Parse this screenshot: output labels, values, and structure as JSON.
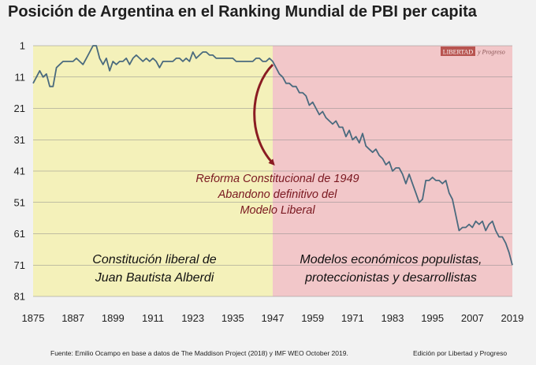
{
  "title": "Posición de Argentina en el Ranking Mundial de PBI per capita",
  "logo": {
    "text": "LIBERTAD",
    "suffix": "y Progreso"
  },
  "footer": {
    "source": "Fuente: Emilio Ocampo en base a datos de The Maddison Project (2018) y IMF WEO October 2019.",
    "edition": "Edición por Libertad y Progreso"
  },
  "colors": {
    "left_region": "#f4f1ba",
    "right_region": "#f2c7c9",
    "line": "#4a6a7e",
    "arrow": "#8a1c22",
    "annotation": "#7a1820"
  },
  "chart_data": {
    "type": "line",
    "title": "Posición de Argentina en el Ranking Mundial de PBI per capita",
    "xlabel": "",
    "ylabel": "",
    "xlim": [
      1875,
      2019
    ],
    "ylim": [
      1,
      81
    ],
    "y_inverted": true,
    "x_ticks": [
      1875,
      1887,
      1899,
      1911,
      1923,
      1935,
      1947,
      1959,
      1971,
      1983,
      1995,
      2007,
      2019
    ],
    "y_ticks": [
      1,
      11,
      21,
      31,
      41,
      51,
      61,
      71,
      81
    ],
    "regions": [
      {
        "from": 1875,
        "to": 1947,
        "label_lines": [
          "Constitución liberal de",
          "Juan Bautista Alberdi"
        ]
      },
      {
        "from": 1947,
        "to": 2019,
        "label_lines": [
          "Modelos económicos populistas,",
          "proteccionistas y desarrollistas"
        ]
      }
    ],
    "annotation": {
      "lines": [
        "Reforma Constitucional de 1949",
        "Abandono definitivo del",
        "Modelo Liberal"
      ],
      "arrow_from_year": 1947
    },
    "series": [
      {
        "name": "Posición de Argentina",
        "x": [
          1875,
          1876,
          1877,
          1878,
          1879,
          1880,
          1881,
          1882,
          1883,
          1884,
          1885,
          1886,
          1887,
          1888,
          1889,
          1890,
          1891,
          1892,
          1893,
          1894,
          1895,
          1896,
          1897,
          1898,
          1899,
          1900,
          1901,
          1902,
          1903,
          1904,
          1905,
          1906,
          1907,
          1908,
          1909,
          1910,
          1911,
          1912,
          1913,
          1914,
          1915,
          1916,
          1917,
          1918,
          1919,
          1920,
          1921,
          1922,
          1923,
          1924,
          1925,
          1926,
          1927,
          1928,
          1929,
          1930,
          1931,
          1932,
          1933,
          1934,
          1935,
          1936,
          1937,
          1938,
          1939,
          1940,
          1941,
          1942,
          1943,
          1944,
          1945,
          1946,
          1947,
          1948,
          1949,
          1950,
          1951,
          1952,
          1953,
          1954,
          1955,
          1956,
          1957,
          1958,
          1959,
          1960,
          1961,
          1962,
          1963,
          1964,
          1965,
          1966,
          1967,
          1968,
          1969,
          1970,
          1971,
          1972,
          1973,
          1974,
          1975,
          1976,
          1977,
          1978,
          1979,
          1980,
          1981,
          1982,
          1983,
          1984,
          1985,
          1986,
          1987,
          1988,
          1989,
          1990,
          1991,
          1992,
          1993,
          1994,
          1995,
          1996,
          1997,
          1998,
          1999,
          2000,
          2001,
          2002,
          2003,
          2004,
          2005,
          2006,
          2007,
          2008,
          2009,
          2010,
          2011,
          2012,
          2013,
          2014,
          2015,
          2016,
          2017,
          2018,
          2019
        ],
        "values": [
          13,
          11,
          9,
          11,
          10,
          14,
          14,
          8,
          7,
          6,
          6,
          6,
          6,
          5,
          6,
          7,
          5,
          3,
          1,
          1,
          5,
          7,
          5,
          9,
          6,
          7,
          6,
          6,
          5,
          7,
          5,
          4,
          5,
          6,
          5,
          6,
          5,
          6,
          8,
          6,
          6,
          6,
          6,
          5,
          5,
          6,
          5,
          6,
          3,
          5,
          4,
          3,
          3,
          4,
          4,
          5,
          5,
          5,
          5,
          5,
          5,
          6,
          6,
          6,
          6,
          6,
          6,
          5,
          5,
          6,
          6,
          5,
          6,
          8,
          10,
          11,
          13,
          13,
          14,
          14,
          16,
          16,
          17,
          20,
          19,
          21,
          23,
          22,
          24,
          25,
          26,
          25,
          27,
          27,
          30,
          28,
          31,
          30,
          32,
          29,
          33,
          34,
          35,
          34,
          36,
          37,
          39,
          38,
          41,
          40,
          40,
          42,
          45,
          42,
          45,
          48,
          51,
          50,
          44,
          44,
          43,
          44,
          44,
          45,
          44,
          48,
          50,
          55,
          60,
          59,
          59,
          58,
          59,
          57,
          58,
          57,
          60,
          58,
          57,
          60,
          62,
          62,
          64,
          67,
          71
        ]
      }
    ]
  }
}
